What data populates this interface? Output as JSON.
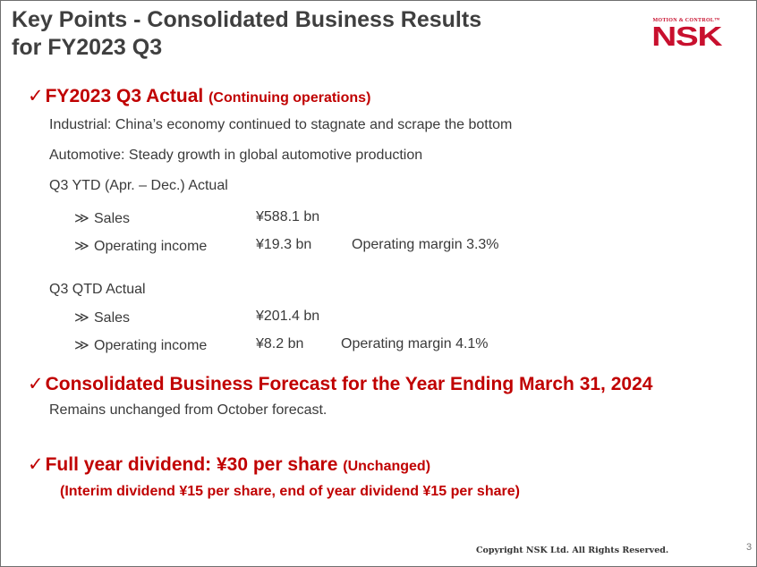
{
  "title": {
    "line1": "Key Points - Consolidated Business Results",
    "line2": "for FY2023 Q3"
  },
  "logo": {
    "tagline": "MOTION & CONTROL™",
    "mark": "NSK"
  },
  "section1": {
    "check": "✓",
    "heading": "FY2023 Q3 Actual",
    "heading_sub": "(Continuing operations)",
    "industrial": "Industrial: China’s economy continued to stagnate and scrape the bottom",
    "automotive": "Automotive: Steady growth in global automotive production",
    "ytd": {
      "label": "Q3 YTD (Apr. – Dec.) Actual",
      "sales_label": "Sales",
      "sales_value": "¥588.1 bn",
      "oi_label": "Operating income",
      "oi_value": "¥19.3 bn",
      "margin": "Operating margin 3.3%"
    },
    "qtd": {
      "label": "Q3 QTD Actual",
      "sales_label": "Sales",
      "sales_value": "¥201.4 bn",
      "oi_label": "Operating income",
      "oi_value": "¥8.2 bn",
      "margin": "Operating margin 4.1%"
    },
    "bullet_symbol": "≫"
  },
  "section2": {
    "check": "✓",
    "heading": "Consolidated Business Forecast for the Year Ending March 31, 2024",
    "body": "Remains unchanged from October forecast."
  },
  "section3": {
    "check": "✓",
    "heading": "Full year dividend: ¥30 per share",
    "heading_sub": "(Unchanged)",
    "detail": "(Interim dividend ¥15 per share, end of year dividend ¥15 per share)"
  },
  "footer": {
    "copyright": "Copyright NSK Ltd. All Rights Reserved.",
    "page_number": "3"
  }
}
